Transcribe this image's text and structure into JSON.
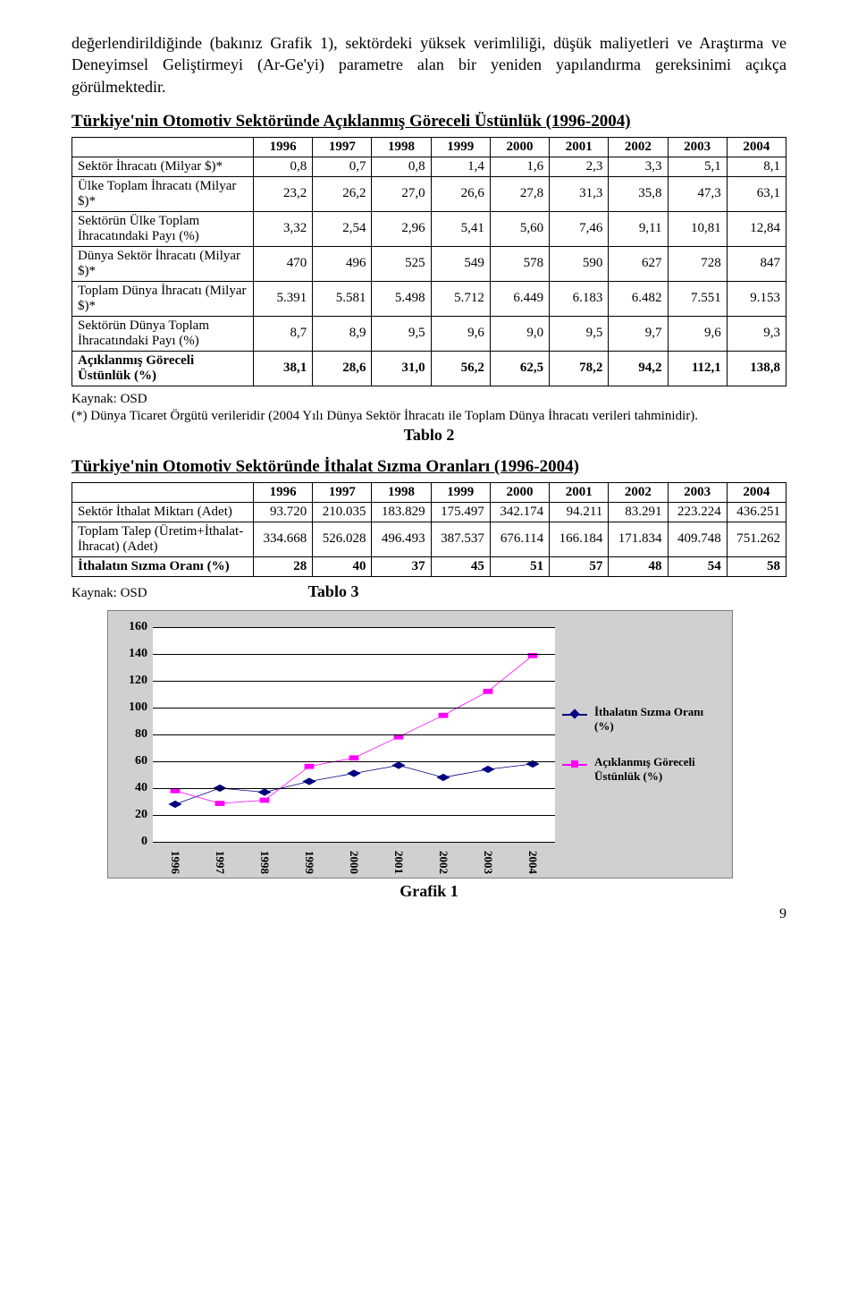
{
  "intro_paragraph": "değerlendirildiğinde (bakınız Grafik 1), sektördeki yüksek verimliliği, düşük maliyetleri ve Araştırma ve Deneyimsel Geliştirmeyi (Ar-Ge'yi) parametre alan bir yeniden yapılandırma gereksinimi açıkça görülmektedir.",
  "table1": {
    "title": "Türkiye'nin Otomotiv Sektöründe Açıklanmış Göreceli Üstünlük (1996-2004)",
    "years": [
      "1996",
      "1997",
      "1998",
      "1999",
      "2000",
      "2001",
      "2002",
      "2003",
      "2004"
    ],
    "rows": [
      {
        "label": "Sektör İhracatı (Milyar $)*",
        "values": [
          "0,8",
          "0,7",
          "0,8",
          "1,4",
          "1,6",
          "2,3",
          "3,3",
          "5,1",
          "8,1"
        ],
        "bold": false
      },
      {
        "label": "Ülke Toplam İhracatı (Milyar $)*",
        "values": [
          "23,2",
          "26,2",
          "27,0",
          "26,6",
          "27,8",
          "31,3",
          "35,8",
          "47,3",
          "63,1"
        ],
        "bold": false
      },
      {
        "label": "Sektörün Ülke Toplam İhracatındaki Payı (%)",
        "values": [
          "3,32",
          "2,54",
          "2,96",
          "5,41",
          "5,60",
          "7,46",
          "9,11",
          "10,81",
          "12,84"
        ],
        "bold": false
      },
      {
        "label": "Dünya Sektör İhracatı (Milyar $)*",
        "values": [
          "470",
          "496",
          "525",
          "549",
          "578",
          "590",
          "627",
          "728",
          "847"
        ],
        "bold": false
      },
      {
        "label": "Toplam Dünya İhracatı (Milyar $)*",
        "values": [
          "5.391",
          "5.581",
          "5.498",
          "5.712",
          "6.449",
          "6.183",
          "6.482",
          "7.551",
          "9.153"
        ],
        "bold": false
      },
      {
        "label": "Sektörün Dünya Toplam İhracatındaki Payı (%)",
        "values": [
          "8,7",
          "8,9",
          "9,5",
          "9,6",
          "9,0",
          "9,5",
          "9,7",
          "9,6",
          "9,3"
        ],
        "bold": false
      },
      {
        "label": "Açıklanmış Göreceli Üstünlük (%)",
        "values": [
          "38,1",
          "28,6",
          "31,0",
          "56,2",
          "62,5",
          "78,2",
          "94,2",
          "112,1",
          "138,8"
        ],
        "bold": true
      }
    ],
    "source": "Kaynak: OSD",
    "footnote": "(*) Dünya Ticaret Örgütü verileridir (2004 Yılı Dünya Sektör İhracatı ile Toplam Dünya İhracatı verileri tahminidir).",
    "caption": "Tablo 2"
  },
  "table2": {
    "title": "Türkiye'nin Otomotiv Sektöründe İthalat Sızma Oranları (1996-2004)",
    "years": [
      "1996",
      "1997",
      "1998",
      "1999",
      "2000",
      "2001",
      "2002",
      "2003",
      "2004"
    ],
    "rows": [
      {
        "label": "Sektör İthalat Miktarı (Adet)",
        "values": [
          "93.720",
          "210.035",
          "183.829",
          "175.497",
          "342.174",
          "94.211",
          "83.291",
          "223.224",
          "436.251"
        ],
        "bold": false
      },
      {
        "label": "Toplam Talep (Üretim+İthalat-İhracat) (Adet)",
        "values": [
          "334.668",
          "526.028",
          "496.493",
          "387.537",
          "676.114",
          "166.184",
          "171.834",
          "409.748",
          "751.262"
        ],
        "bold": false
      },
      {
        "label": "İthalatın Sızma Oranı (%)",
        "values": [
          "28",
          "40",
          "37",
          "45",
          "51",
          "57",
          "48",
          "54",
          "58"
        ],
        "bold": true
      }
    ],
    "source": "Kaynak: OSD",
    "caption": "Tablo 3"
  },
  "chart": {
    "type": "line",
    "categories": [
      "1996",
      "1997",
      "1998",
      "1999",
      "2000",
      "2001",
      "2002",
      "2003",
      "2004"
    ],
    "ylim": [
      0,
      160
    ],
    "ytick_step": 20,
    "plot_background": "#ffffff",
    "panel_background": "#d0d0d0",
    "grid_color": "#000000",
    "font_size": 13,
    "series": [
      {
        "name": "İthalatın Sızma Oranı (%)",
        "color": "#000080",
        "marker": "diamond",
        "values": [
          28,
          40,
          37,
          45,
          51,
          57,
          48,
          54,
          58
        ]
      },
      {
        "name": "Açıklanmış Göreceli Üstünlük (%)",
        "color": "#ff00ff",
        "marker": "square",
        "values": [
          38.1,
          28.6,
          31.0,
          56.2,
          62.5,
          78.2,
          94.2,
          112.1,
          138.8
        ]
      }
    ],
    "caption": "Grafik 1"
  },
  "page_number": "9"
}
